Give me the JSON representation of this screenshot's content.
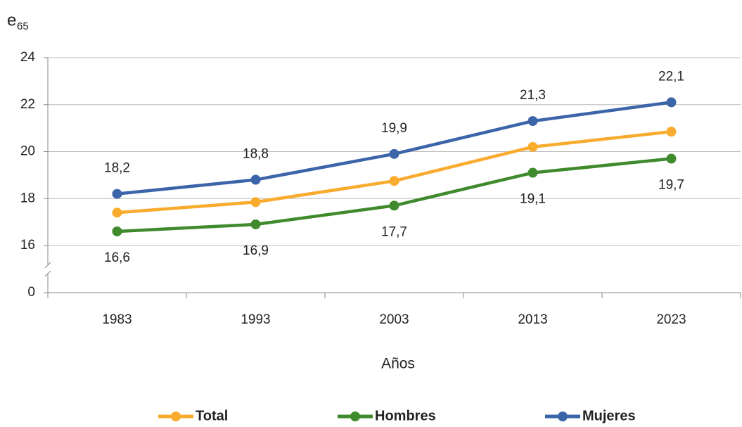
{
  "chart_data": {
    "type": "line",
    "ylabel": "e",
    "ylabel_subscript": "65",
    "xlabel": "Años",
    "categories": [
      "1983",
      "1993",
      "2003",
      "2013",
      "2023"
    ],
    "series": [
      {
        "name": "Total",
        "color": "#f9ab2e",
        "values": [
          17.4,
          17.85,
          18.75,
          20.2,
          20.85
        ]
      },
      {
        "name": "Hombres",
        "color": "#3f8a2c",
        "values": [
          16.6,
          16.9,
          17.7,
          19.1,
          19.7
        ],
        "value_labels": [
          "16,6",
          "16,9",
          "17,7",
          "19,1",
          "19,7"
        ],
        "label_position": "below"
      },
      {
        "name": "Mujeres",
        "color": "#3c64a8",
        "values": [
          18.2,
          18.8,
          19.9,
          21.3,
          22.1
        ],
        "value_labels": [
          "18,2",
          "18,8",
          "19,9",
          "21,3",
          "22,1"
        ],
        "label_position": "above"
      }
    ],
    "ylim": [
      16,
      24
    ],
    "yticks": [
      16,
      18,
      20,
      22,
      24
    ],
    "ybreak": true,
    "ybreak_tick": 0,
    "grid": true,
    "legend": "bottom"
  }
}
